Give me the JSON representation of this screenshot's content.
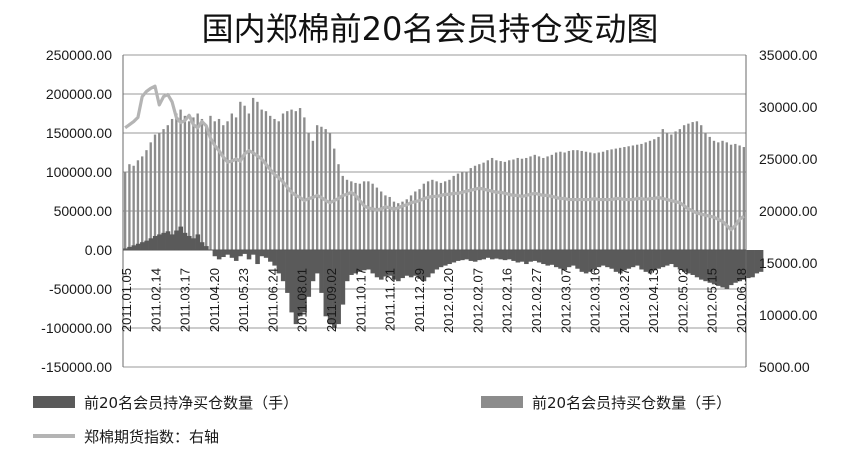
{
  "chart_data": {
    "type": "bar",
    "title": "国内郑棉前20名会员持仓变动图",
    "xlabel": "",
    "ylabel": "",
    "ylim": [
      -150000,
      250000
    ],
    "y2lim": [
      5000,
      35000
    ],
    "y_ticks": [
      "250000.00",
      "200000.00",
      "150000.00",
      "100000.00",
      "50000.00",
      "0.00",
      "-50000.00",
      "-100000.00",
      "-150000.00"
    ],
    "y2_ticks": [
      "35000.00",
      "30000.00",
      "25000.00",
      "20000.00",
      "15000.00",
      "10000.00",
      "5000.00"
    ],
    "x_tick_labels": [
      "2011.01.05",
      "2011.02.14",
      "2011.03.17",
      "2011.04.20",
      "2011.05.23",
      "2011.06.24",
      "2011.08.01",
      "2011.09.02",
      "2011.10.17",
      "2011.11.21",
      "2011.12.29",
      "2012.01.20",
      "2012.02.07",
      "2012.02.16",
      "2012.02.27",
      "2012.03.07",
      "2012.03.16",
      "2012.03.27",
      "2012.04.13",
      "2012.05.02",
      "2012.05.15",
      "2012.06.18"
    ],
    "grid": true,
    "legend_position": "bottom",
    "colors": {
      "net_long": "#5a5a5a",
      "long": "#8c8c8c",
      "index": "#b4b4b4",
      "grid": "#9a9a9a",
      "axis": "#6a6a6a"
    },
    "series": [
      {
        "name": "前20名会员持净买仓数量（手）",
        "type": "bar",
        "axis": "left",
        "values": [
          2000,
          4000,
          6000,
          8000,
          10000,
          12000,
          15000,
          18000,
          20000,
          22000,
          24000,
          20000,
          25000,
          30000,
          22000,
          18000,
          15000,
          20000,
          10000,
          5000,
          0,
          -8000,
          -12000,
          -9000,
          -6000,
          -10000,
          -14000,
          -8000,
          -5000,
          -12000,
          -6000,
          -18000,
          -8000,
          -10000,
          -15000,
          -20000,
          -30000,
          -40000,
          -55000,
          -80000,
          -95000,
          -85000,
          -80000,
          -60000,
          -40000,
          -30000,
          -55000,
          -85000,
          -95000,
          -100000,
          -95000,
          -70000,
          -40000,
          -32000,
          -30000,
          -28000,
          -26000,
          -25000,
          -30000,
          -35000,
          -38000,
          -34000,
          -33000,
          -38000,
          -40000,
          -36000,
          -33000,
          -35000,
          -33000,
          -37000,
          -40000,
          -35000,
          -30000,
          -25000,
          -22000,
          -20000,
          -18000,
          -16000,
          -14000,
          -13000,
          -12000,
          -14000,
          -15000,
          -13000,
          -12000,
          -10000,
          -12000,
          -11000,
          -12000,
          -13000,
          -12000,
          -14000,
          -16000,
          -15000,
          -18000,
          -15000,
          -14000,
          -16000,
          -18000,
          -20000,
          -19000,
          -22000,
          -24000,
          -26000,
          -22000,
          -20000,
          -24000,
          -28000,
          -30000,
          -28000,
          -25000,
          -22000,
          -20000,
          -22000,
          -24000,
          -28000,
          -30000,
          -26000,
          -24000,
          -22000,
          -20000,
          -25000,
          -28000,
          -30000,
          -26000,
          -24000,
          -22000,
          -20000,
          -18000,
          -22000,
          -25000,
          -28000,
          -30000,
          -32000,
          -35000,
          -38000,
          -40000,
          -42000,
          -44000,
          -46000,
          -48000,
          -50000,
          -45000,
          -42000,
          -40000,
          -38000,
          -36000,
          -35000,
          -30000,
          -28000
        ]
      },
      {
        "name": "前20名会员持买仓数量（手）",
        "type": "bar",
        "axis": "left",
        "values": [
          100000,
          110000,
          108000,
          115000,
          120000,
          128000,
          138000,
          148000,
          150000,
          155000,
          160000,
          168000,
          175000,
          180000,
          172000,
          165000,
          170000,
          175000,
          168000,
          160000,
          172000,
          165000,
          168000,
          160000,
          165000,
          175000,
          170000,
          190000,
          185000,
          175000,
          195000,
          190000,
          180000,
          178000,
          172000,
          168000,
          165000,
          175000,
          178000,
          180000,
          178000,
          182000,
          170000,
          150000,
          140000,
          160000,
          158000,
          155000,
          150000,
          130000,
          110000,
          95000,
          90000,
          88000,
          86000,
          85000,
          88000,
          88000,
          85000,
          80000,
          75000,
          70000,
          68000,
          62000,
          60000,
          62000,
          65000,
          70000,
          75000,
          78000,
          85000,
          88000,
          90000,
          88000,
          86000,
          88000,
          90000,
          95000,
          98000,
          100000,
          100000,
          105000,
          108000,
          110000,
          112000,
          115000,
          118000,
          115000,
          114000,
          113000,
          115000,
          116000,
          118000,
          117000,
          118000,
          120000,
          122000,
          120000,
          118000,
          120000,
          122000,
          125000,
          126000,
          125000,
          127000,
          128000,
          128000,
          127000,
          126000,
          125000,
          124000,
          125000,
          126000,
          128000,
          129000,
          130000,
          131000,
          132000,
          133000,
          134000,
          135000,
          136000,
          138000,
          140000,
          142000,
          145000,
          155000,
          150000,
          148000,
          152000,
          155000,
          160000,
          162000,
          164000,
          165000,
          160000,
          150000,
          145000,
          140000,
          138000,
          140000,
          138000,
          135000,
          136000,
          134000,
          132000
        ]
      },
      {
        "name": "郑棉期货指数：右轴",
        "type": "line",
        "axis": "right",
        "values": [
          28000,
          28300,
          28600,
          29000,
          31000,
          31500,
          31800,
          32000,
          30200,
          31000,
          31200,
          30500,
          29000,
          28500,
          28700,
          29200,
          28300,
          28000,
          28600,
          28200,
          27000,
          26300,
          25800,
          25200,
          24700,
          24800,
          25000,
          24800,
          25500,
          25800,
          25600,
          25300,
          25000,
          24500,
          24000,
          23500,
          23200,
          22800,
          22300,
          21800,
          21500,
          21300,
          21000,
          21200,
          21300,
          21500,
          21300,
          21000,
          20800,
          21000,
          21200,
          21500,
          21600,
          21800,
          21500,
          21000,
          20500,
          20300,
          20200,
          20100,
          20200,
          20400,
          20300,
          20200,
          20300,
          20500,
          20600,
          20800,
          20900,
          21000,
          21200,
          21300,
          21400,
          21400,
          21500,
          21600,
          21600,
          21700,
          21700,
          21800,
          21900,
          22000,
          22100,
          22200,
          22100,
          22000,
          21900,
          21800,
          21800,
          21700,
          21600,
          21500,
          21500,
          21400,
          21500,
          21600,
          21700,
          21600,
          21500,
          21500,
          21400,
          21300,
          21200,
          21200,
          21100,
          21100,
          21100,
          21100,
          21100,
          21100,
          21200,
          21100,
          21100,
          21100,
          21100,
          21200,
          21200,
          21100,
          21100,
          21100,
          21200,
          21200,
          21100,
          21200,
          21200,
          21300,
          21200,
          21100,
          21000,
          20900,
          20800,
          20500,
          20200,
          20000,
          19800,
          19700,
          19600,
          19500,
          19400,
          19200,
          19000,
          18600,
          18200,
          18600,
          19200,
          19500
        ]
      }
    ]
  }
}
